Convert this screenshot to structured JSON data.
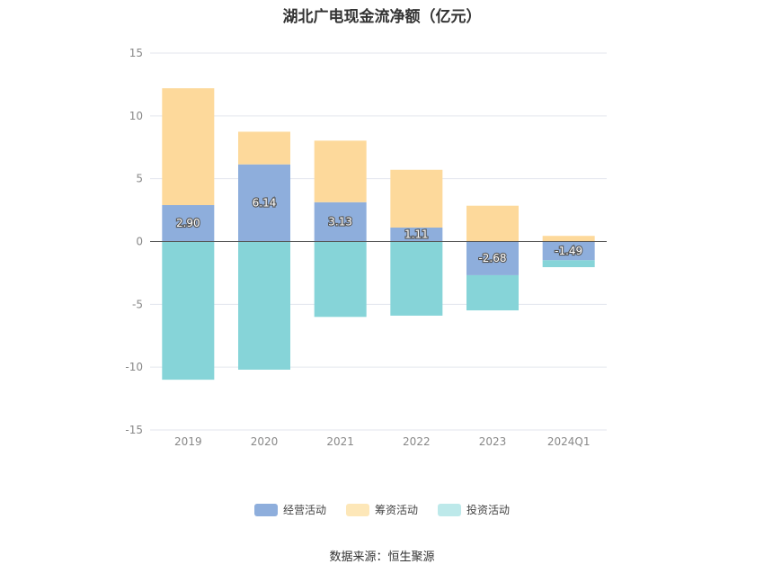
{
  "chart_data": {
    "type": "bar",
    "stacked": true,
    "title": "湖北广电现金流净额（亿元）",
    "categories": [
      "2019",
      "2020",
      "2021",
      "2022",
      "2023",
      "2024Q1"
    ],
    "series": [
      {
        "name": "经营活动",
        "color": "#8eaedc",
        "values": [
          2.9,
          6.14,
          3.13,
          1.11,
          -2.68,
          -1.49
        ]
      },
      {
        "name": "筹资活动",
        "color": "#fdd99b",
        "values": [
          9.3,
          2.6,
          4.9,
          4.6,
          2.85,
          0.45
        ]
      },
      {
        "name": "投资活动",
        "color": "#86d4d8",
        "values": [
          -11.0,
          -10.2,
          -6.0,
          -5.9,
          -2.8,
          -0.55
        ]
      }
    ],
    "data_labels": [
      "2.90",
      "6.14",
      "3.13",
      "1.11",
      "-2.68",
      "-1.49"
    ],
    "yticks": [
      "15",
      "10",
      "5",
      "0",
      "-5",
      "-10",
      "-15"
    ],
    "ylim": [
      -15,
      15
    ],
    "grid": true,
    "legend_position": "bottom"
  },
  "legend_colors": [
    "#8eaedc",
    "#fde7b8",
    "#bde9ea"
  ],
  "source": "数据来源：恒生聚源"
}
